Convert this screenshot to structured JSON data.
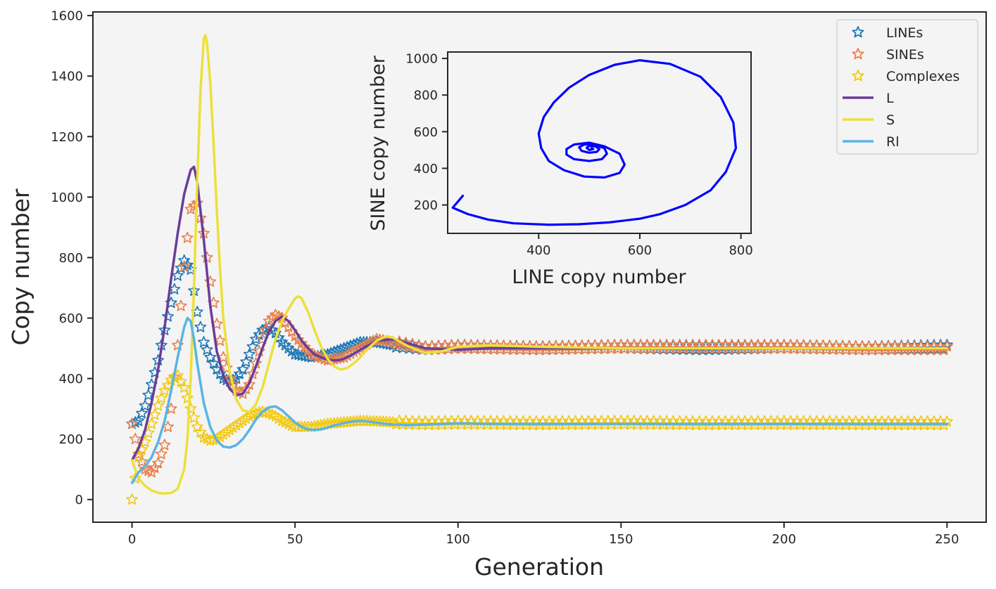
{
  "chart_data": [
    {
      "type": "line",
      "xlabel": "Generation",
      "ylabel": "Copy number",
      "xlim": [
        -12,
        262
      ],
      "ylim": [
        -75,
        1612
      ],
      "xticks": [
        0,
        50,
        100,
        150,
        200,
        250
      ],
      "yticks": [
        0,
        200,
        400,
        600,
        800,
        1000,
        1200,
        1400,
        1600
      ],
      "grid": false,
      "legend_position": "top-right",
      "colors": {
        "LINEs": "#1f77b4",
        "SINEs": "#e8804d",
        "Complexes": "#f2c90f",
        "L": "#6a3d9a",
        "S": "#ece03a",
        "Rl": "#5ab4e5",
        "inset": "#0000ff",
        "background": "#f4f4f4"
      },
      "series": [
        {
          "name": "LINEs",
          "style": "star-markers",
          "x": [
            0,
            2,
            4,
            6,
            8,
            10,
            12,
            14,
            16,
            18,
            20,
            22,
            24,
            26,
            28,
            30,
            32,
            34,
            36,
            38,
            40,
            42,
            44,
            46,
            48,
            50,
            55,
            60,
            65,
            70,
            75,
            80,
            90,
            100,
            125,
            150,
            175,
            200,
            225,
            250
          ],
          "values": [
            250,
            260,
            310,
            380,
            460,
            560,
            650,
            740,
            790,
            760,
            620,
            520,
            470,
            430,
            400,
            390,
            400,
            430,
            480,
            530,
            560,
            570,
            550,
            520,
            500,
            480,
            470,
            480,
            500,
            520,
            520,
            510,
            500,
            505,
            500,
            505,
            500,
            505,
            500,
            505
          ]
        },
        {
          "name": "SINEs",
          "style": "star-markers",
          "x": [
            0,
            2,
            4,
            6,
            8,
            10,
            12,
            14,
            16,
            18,
            20,
            22,
            24,
            26,
            28,
            30,
            32,
            34,
            36,
            38,
            40,
            42,
            44,
            46,
            48,
            50,
            55,
            60,
            65,
            70,
            75,
            80,
            90,
            100,
            125,
            150,
            175,
            200,
            225,
            250
          ],
          "values": [
            250,
            150,
            100,
            90,
            120,
            180,
            300,
            510,
            770,
            960,
            980,
            880,
            720,
            580,
            470,
            400,
            360,
            350,
            380,
            450,
            530,
            590,
            610,
            600,
            570,
            540,
            480,
            460,
            470,
            500,
            530,
            520,
            500,
            505,
            500,
            505,
            505,
            505,
            500,
            500
          ]
        },
        {
          "name": "Complexes",
          "style": "star-markers",
          "x": [
            0,
            2,
            4,
            6,
            8,
            10,
            12,
            14,
            16,
            18,
            20,
            22,
            24,
            26,
            28,
            30,
            32,
            34,
            36,
            38,
            40,
            42,
            44,
            46,
            48,
            50,
            55,
            60,
            65,
            70,
            75,
            80,
            90,
            100,
            125,
            150,
            175,
            200,
            225,
            250
          ],
          "values": [
            0,
            140,
            190,
            250,
            310,
            360,
            395,
            410,
            370,
            300,
            240,
            205,
            195,
            200,
            215,
            230,
            245,
            260,
            275,
            285,
            290,
            285,
            275,
            260,
            250,
            240,
            240,
            250,
            255,
            260,
            258,
            255,
            252,
            254,
            252,
            254,
            252,
            253,
            252,
            252
          ]
        },
        {
          "name": "L",
          "style": "line",
          "x": [
            0,
            2,
            4,
            6,
            8,
            10,
            12,
            14,
            16,
            18,
            19,
            20,
            22,
            24,
            26,
            28,
            30,
            32,
            34,
            36,
            38,
            40,
            42,
            44,
            46,
            48,
            50,
            52,
            54,
            56,
            58,
            60,
            62,
            64,
            66,
            68,
            70,
            75,
            80,
            85,
            90,
            100,
            110,
            125,
            150,
            175,
            200,
            225,
            250
          ],
          "values": [
            130,
            170,
            230,
            320,
            430,
            570,
            730,
            880,
            1010,
            1090,
            1100,
            1050,
            860,
            640,
            490,
            410,
            365,
            345,
            350,
            385,
            440,
            500,
            555,
            590,
            605,
            590,
            560,
            525,
            500,
            480,
            470,
            462,
            460,
            462,
            470,
            482,
            495,
            525,
            530,
            515,
            500,
            495,
            500,
            500,
            500,
            500,
            500,
            500,
            500
          ]
        },
        {
          "name": "S",
          "style": "line",
          "x": [
            0,
            2,
            4,
            6,
            8,
            10,
            12,
            14,
            16,
            17,
            18,
            19,
            20,
            21,
            22,
            22.5,
            23,
            24,
            25,
            26,
            27,
            28,
            30,
            32,
            34,
            36,
            38,
            40,
            42,
            44,
            46,
            48,
            50,
            51,
            52,
            54,
            56,
            58,
            60,
            62,
            64,
            66,
            68,
            70,
            72,
            75,
            78,
            80,
            85,
            90,
            95,
            100,
            110,
            125,
            150,
            175,
            200,
            225,
            250
          ],
          "values": [
            130,
            70,
            45,
            30,
            22,
            20,
            22,
            35,
            100,
            200,
            400,
            700,
            1050,
            1350,
            1520,
            1535,
            1510,
            1380,
            1180,
            960,
            760,
            600,
            420,
            330,
            295,
            290,
            315,
            370,
            450,
            530,
            590,
            630,
            665,
            672,
            665,
            620,
            560,
            505,
            465,
            440,
            430,
            435,
            450,
            470,
            495,
            525,
            540,
            535,
            505,
            485,
            490,
            505,
            510,
            505,
            500,
            500,
            500,
            500,
            500
          ]
        },
        {
          "name": "Rl",
          "style": "line",
          "x": [
            0,
            2,
            4,
            6,
            8,
            10,
            12,
            14,
            16,
            17,
            18,
            19,
            20,
            22,
            24,
            26,
            28,
            30,
            32,
            34,
            36,
            38,
            40,
            42,
            44,
            46,
            48,
            50,
            52,
            54,
            56,
            58,
            60,
            62,
            64,
            66,
            68,
            70,
            72,
            75,
            78,
            80,
            85,
            90,
            100,
            110,
            125,
            150,
            175,
            200,
            225,
            250
          ],
          "values": [
            55,
            90,
            110,
            140,
            190,
            260,
            360,
            470,
            570,
            600,
            590,
            530,
            450,
            320,
            240,
            195,
            175,
            172,
            180,
            200,
            230,
            265,
            290,
            305,
            308,
            295,
            275,
            255,
            240,
            232,
            230,
            232,
            238,
            245,
            250,
            255,
            258,
            260,
            258,
            254,
            250,
            248,
            246,
            248,
            252,
            250,
            250,
            250,
            250,
            250,
            250,
            250
          ]
        }
      ]
    },
    {
      "type": "line",
      "xlabel": "LINE copy number",
      "ylabel": "SINE copy number",
      "xlim": [
        220,
        820
      ],
      "ylim": [
        45,
        1035
      ],
      "xticks": [
        400,
        600,
        800
      ],
      "yticks": [
        200,
        400,
        600,
        800,
        1000
      ],
      "grid": false,
      "series": [
        {
          "style": "line",
          "x": [
            250,
            230,
            260,
            300,
            350,
            420,
            480,
            540,
            600,
            640,
            690,
            740,
            770,
            790,
            785,
            760,
            720,
            660,
            600,
            550,
            500,
            460,
            430,
            410,
            400,
            405,
            420,
            450,
            490,
            530,
            560,
            570,
            560,
            530,
            500,
            470,
            455,
            455,
            470,
            500,
            525,
            535,
            530,
            510,
            490,
            480,
            485,
            500,
            515,
            520,
            512,
            500,
            495,
            500,
            508,
            505
          ],
          "y": [
            250,
            185,
            150,
            120,
            100,
            92,
            95,
            105,
            125,
            150,
            200,
            280,
            380,
            510,
            650,
            790,
            900,
            970,
            990,
            965,
            910,
            840,
            760,
            680,
            590,
            510,
            440,
            390,
            355,
            350,
            375,
            420,
            480,
            520,
            540,
            530,
            505,
            475,
            450,
            440,
            450,
            480,
            510,
            530,
            530,
            515,
            495,
            485,
            490,
            505,
            520,
            522,
            512,
            500,
            505,
            510
          ]
        }
      ]
    }
  ]
}
